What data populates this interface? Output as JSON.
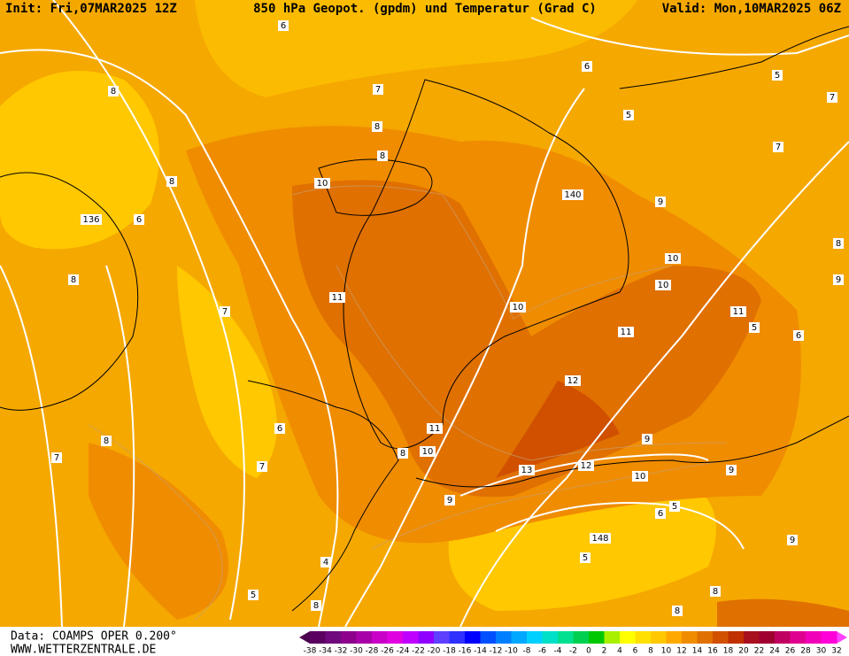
{
  "header": {
    "init": "Init: Fri,07MAR2025 12Z",
    "title": "850 hPa Geopot. (gpdm) und Temperatur (Grad C)",
    "valid": "Valid: Mon,10MAR2025 06Z"
  },
  "footer": {
    "data": "Data: COAMPS OPER 0.200°",
    "site": "WWW.WETTERZENTRALE.DE"
  },
  "scale": {
    "labels": [
      -38,
      -34,
      -32,
      -30,
      -28,
      -26,
      -24,
      -22,
      -20,
      -18,
      -16,
      -14,
      -12,
      -10,
      -8,
      -6,
      -4,
      -2,
      0,
      2,
      4,
      6,
      8,
      10,
      12,
      14,
      16,
      18,
      20,
      22,
      24,
      26,
      28,
      30,
      32
    ],
    "under_color": "#4b0050",
    "over_color": "#ff40ff",
    "colors": [
      "#5a0060",
      "#6e0a7c",
      "#8c008c",
      "#a800a8",
      "#c800c8",
      "#e000e0",
      "#c000ff",
      "#9000ff",
      "#6040ff",
      "#3030ff",
      "#0000ff",
      "#0050ff",
      "#0080ff",
      "#00a8ff",
      "#00d0ff",
      "#00e0c8",
      "#00e090",
      "#00d050",
      "#00c800",
      "#a8f000",
      "#ffff00",
      "#ffe000",
      "#ffc800",
      "#ffa800",
      "#f08c00",
      "#e07000",
      "#d05000",
      "#c03000",
      "#a81020",
      "#a00030",
      "#c00060",
      "#e00090",
      "#f000b8",
      "#ff00d8"
    ]
  },
  "contour_labels": [
    "6",
    "7",
    "8",
    "8",
    "8",
    "10",
    "136",
    "6",
    "8",
    "7",
    "8",
    "11",
    "6",
    "7",
    "8",
    "10",
    "10",
    "11",
    "12",
    "13",
    "12",
    "10",
    "11",
    "10",
    "5",
    "148",
    "6",
    "4",
    "5",
    "140",
    "8",
    "5",
    "7",
    "9",
    "8",
    "9",
    "5",
    "6",
    "7",
    "8",
    "9",
    "5",
    "6",
    "7",
    "8",
    "9",
    "11",
    "10",
    "9",
    "6",
    "5",
    "9",
    "8",
    "8"
  ]
}
